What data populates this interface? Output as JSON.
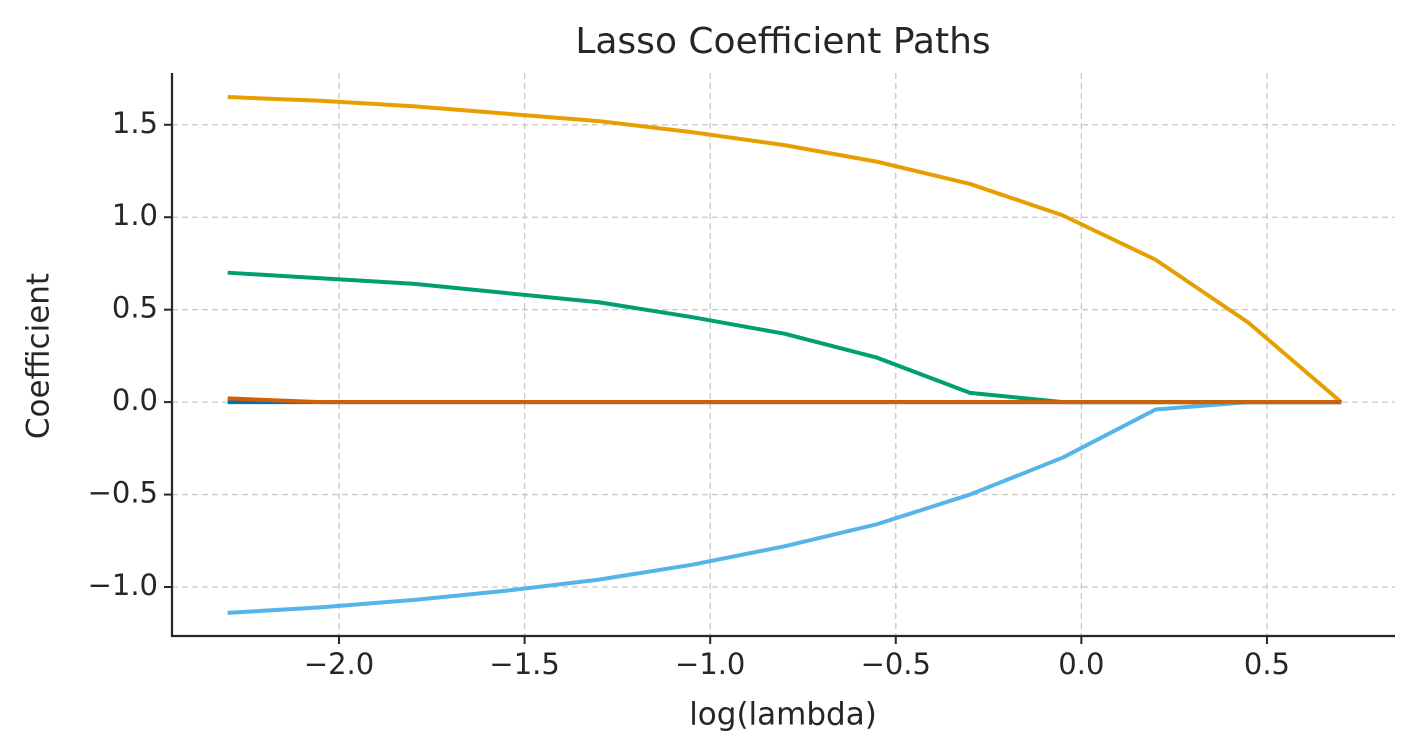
{
  "chart_data": {
    "type": "line",
    "title": "Lasso Coefficient Paths",
    "x_label": "log(lambda)",
    "y_label": "Coefficient",
    "x": [
      -2.3,
      -2.05,
      -1.8,
      -1.55,
      -1.3,
      -1.05,
      -0.8,
      -0.55,
      -0.3,
      -0.05,
      0.2,
      0.45,
      0.7
    ],
    "series": [
      {
        "color": "#0072B2",
        "values": [
          0,
          0,
          0,
          0,
          0,
          0,
          0,
          0,
          0,
          0,
          0,
          0,
          0
        ]
      },
      {
        "color": "#E69F00",
        "values": [
          1.65,
          1.63,
          1.6,
          1.56,
          1.52,
          1.46,
          1.39,
          1.3,
          1.18,
          1.01,
          0.77,
          0.43,
          0
        ]
      },
      {
        "color": "#009E73",
        "values": [
          0.7,
          0.67,
          0.64,
          0.59,
          0.54,
          0.46,
          0.37,
          0.24,
          0.05,
          0,
          0,
          0,
          0
        ]
      },
      {
        "color": "#56B4E9",
        "values": [
          -1.14,
          -1.11,
          -1.07,
          -1.02,
          -0.96,
          -0.88,
          -0.78,
          -0.66,
          -0.5,
          -0.3,
          -0.04,
          0,
          0
        ]
      },
      {
        "color": "#D55E00",
        "values": [
          0.02,
          0,
          0,
          0,
          0,
          0,
          0,
          0,
          0,
          0,
          0,
          0,
          0
        ]
      }
    ],
    "xlim": [
      -2.45,
      0.845
    ],
    "ylim": [
      -1.265,
      1.78
    ],
    "xticks": [
      {
        "value": -2,
        "label": "−2.0"
      },
      {
        "value": -1.5,
        "label": "−1.5"
      },
      {
        "value": -1,
        "label": "−1.0"
      },
      {
        "value": -0.5,
        "label": "−0.5"
      },
      {
        "value": 0,
        "label": "0.0"
      },
      0.5
    ],
    "yticks": [
      {
        "value": -1,
        "label": "−1.0"
      },
      {
        "value": -0.5,
        "label": "−0.5"
      },
      {
        "value": 0,
        "label": "0.0"
      },
      0.5,
      {
        "value": 1,
        "label": "1.0"
      },
      1.5
    ],
    "grid": true
  }
}
